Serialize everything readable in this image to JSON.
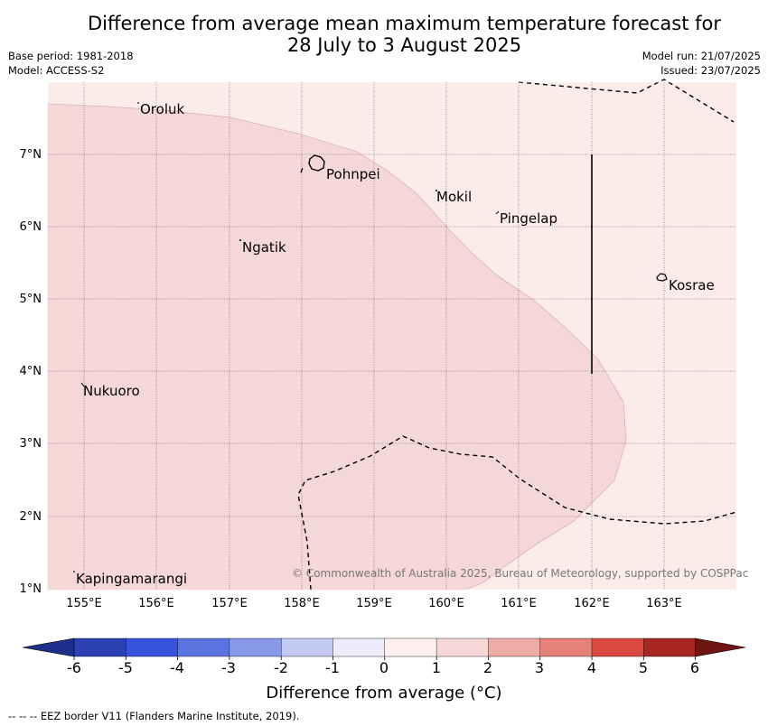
{
  "title_line1": "Difference from average mean maximum temperature forecast for",
  "title_line2": "28 July to 3 August 2025",
  "meta_left": {
    "base_period": "Base period: 1981-2018",
    "model": "Model: ACCESS-S2"
  },
  "meta_right": {
    "model_run": "Model run: 21/07/2025",
    "issued": "Issued: 23/07/2025"
  },
  "latitude_labels": [
    "7°N",
    "6°N",
    "5°N",
    "4°N",
    "3°N",
    "2°N",
    "1°N"
  ],
  "longitude_labels": [
    "155°E",
    "156°E",
    "157°E",
    "158°E",
    "159°E",
    "160°E",
    "161°E",
    "162°E",
    "163°E"
  ],
  "places": {
    "oroluk": "Oroluk",
    "pohnpei": "Pohnpei",
    "mokil": "Mokil",
    "pingelap": "Pingelap",
    "ngatik": "Ngatik",
    "kosrae": "Kosrae",
    "nukuoro": "Nukuoro",
    "kapingamarangi": "Kapingamarangi"
  },
  "copyright": "© Commonwealth of Australia 2025, Bureau of Meteorology, supported by COSPPac",
  "colorbar": {
    "ticks": [
      "-6",
      "-5",
      "-4",
      "-3",
      "-2",
      "-1",
      "0",
      "1",
      "2",
      "3",
      "4",
      "5",
      "6"
    ],
    "label": "Difference from average (°C)",
    "colors": [
      "#1c2f8a",
      "#2a40b3",
      "#3752dc",
      "#5c74e2",
      "#8899ea",
      "#c3caf3",
      "#ececfb",
      "#fdf0ee",
      "#f5d7d5",
      "#eeaca7",
      "#e68179",
      "#da4a40",
      "#a82723",
      "#6e1512"
    ]
  },
  "map_values": {
    "background_band_celsius": "0 to 1",
    "region_band_celsius": "1 to 2"
  },
  "eez_note": "--  --  -- EEZ border V11 (Flanders Marine Institute, 2019)."
}
